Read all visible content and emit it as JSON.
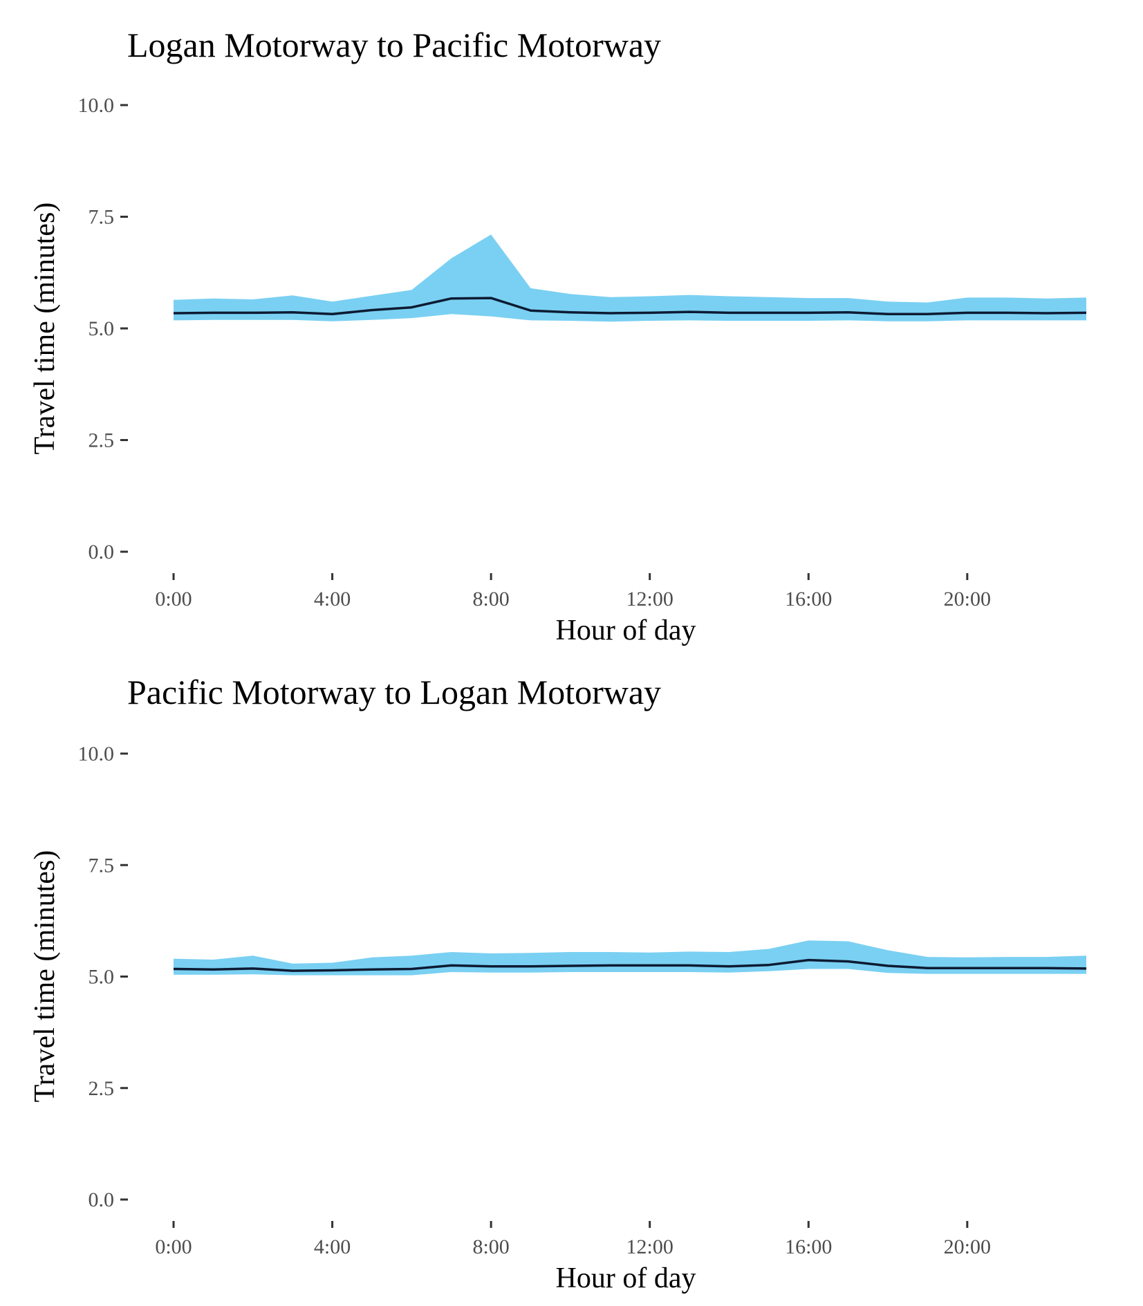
{
  "chart_data": [
    {
      "type": "area",
      "title": "Logan Motorway to Pacific Motorway",
      "xlabel": "Hour of day",
      "ylabel": "Travel time (minutes)",
      "xlim": [
        0,
        23
      ],
      "ylim": [
        0,
        10
      ],
      "x_ticks": [
        0,
        4,
        8,
        12,
        16,
        20
      ],
      "x_tick_labels": [
        "0:00",
        "4:00",
        "8:00",
        "12:00",
        "16:00",
        "20:00"
      ],
      "y_ticks": [
        0,
        2.5,
        5,
        7.5,
        10
      ],
      "y_tick_labels": [
        "0.0",
        "2.5",
        "5.0",
        "7.5",
        "10.0"
      ],
      "grid": false,
      "hours": [
        0,
        1,
        2,
        3,
        4,
        5,
        6,
        7,
        8,
        9,
        10,
        11,
        12,
        13,
        14,
        15,
        16,
        17,
        18,
        19,
        20,
        21,
        22,
        23
      ],
      "series": [
        {
          "values": [
            5.34,
            5.35,
            5.35,
            5.36,
            5.32,
            5.41,
            5.47,
            5.67,
            5.68,
            5.4,
            5.36,
            5.34,
            5.35,
            5.37,
            5.35,
            5.35,
            5.35,
            5.36,
            5.32,
            5.32,
            5.35,
            5.35,
            5.34,
            5.35
          ],
          "lower": [
            5.18,
            5.19,
            5.19,
            5.19,
            5.16,
            5.19,
            5.23,
            5.32,
            5.27,
            5.18,
            5.17,
            5.15,
            5.17,
            5.18,
            5.17,
            5.17,
            5.17,
            5.18,
            5.16,
            5.16,
            5.18,
            5.18,
            5.18,
            5.18
          ],
          "upper": [
            5.64,
            5.67,
            5.65,
            5.74,
            5.6,
            5.73,
            5.86,
            6.57,
            7.1,
            5.9,
            5.77,
            5.7,
            5.72,
            5.75,
            5.72,
            5.7,
            5.68,
            5.68,
            5.6,
            5.58,
            5.69,
            5.69,
            5.67,
            5.69
          ]
        }
      ],
      "colors": {
        "band": "#7ad0f2",
        "line": "#0d1b33"
      }
    },
    {
      "type": "area",
      "title": "Pacific Motorway to Logan Motorway",
      "xlabel": "Hour of day",
      "ylabel": "Travel time (minutes)",
      "xlim": [
        0,
        23
      ],
      "ylim": [
        0,
        10
      ],
      "x_ticks": [
        0,
        4,
        8,
        12,
        16,
        20
      ],
      "x_tick_labels": [
        "0:00",
        "4:00",
        "8:00",
        "12:00",
        "16:00",
        "20:00"
      ],
      "y_ticks": [
        0,
        2.5,
        5,
        7.5,
        10
      ],
      "y_tick_labels": [
        "0.0",
        "2.5",
        "5.0",
        "7.5",
        "10.0"
      ],
      "grid": false,
      "hours": [
        0,
        1,
        2,
        3,
        4,
        5,
        6,
        7,
        8,
        9,
        10,
        11,
        12,
        13,
        14,
        15,
        16,
        17,
        18,
        19,
        20,
        21,
        22,
        23
      ],
      "series": [
        {
          "values": [
            5.17,
            5.16,
            5.18,
            5.13,
            5.14,
            5.16,
            5.17,
            5.25,
            5.23,
            5.23,
            5.24,
            5.25,
            5.25,
            5.25,
            5.23,
            5.26,
            5.37,
            5.34,
            5.24,
            5.19,
            5.19,
            5.19,
            5.19,
            5.18
          ],
          "lower": [
            5.04,
            5.04,
            5.05,
            5.03,
            5.03,
            5.03,
            5.03,
            5.1,
            5.09,
            5.09,
            5.1,
            5.1,
            5.1,
            5.1,
            5.09,
            5.12,
            5.17,
            5.17,
            5.08,
            5.06,
            5.06,
            5.06,
            5.06,
            5.06
          ],
          "upper": [
            5.4,
            5.38,
            5.47,
            5.29,
            5.31,
            5.43,
            5.47,
            5.55,
            5.52,
            5.53,
            5.55,
            5.55,
            5.54,
            5.56,
            5.55,
            5.62,
            5.81,
            5.79,
            5.59,
            5.44,
            5.43,
            5.44,
            5.44,
            5.47
          ]
        }
      ],
      "colors": {
        "band": "#7ad0f2",
        "line": "#0d1b33"
      }
    }
  ]
}
